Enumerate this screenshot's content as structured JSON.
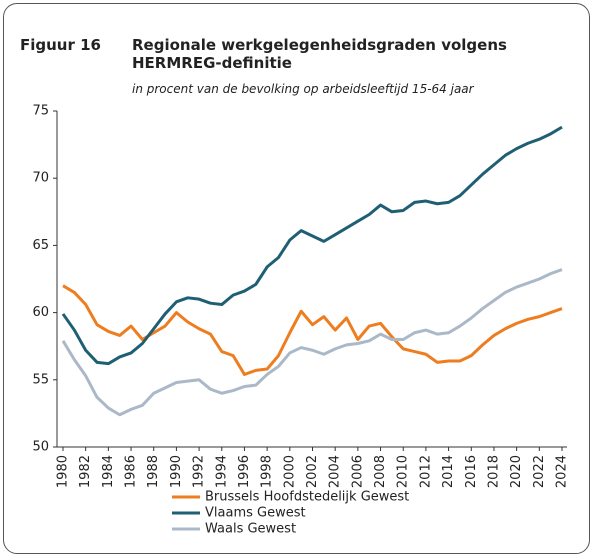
{
  "chart_data": {
    "type": "line",
    "figure_label": "Figuur 16",
    "title": "Regionale werkgelegenheidsgraden volgens HERMREG-definitie",
    "subtitle": "in procent van de bevolking op arbeidsleeftijd 15-64 jaar",
    "x": [
      1980,
      1981,
      1982,
      1983,
      1984,
      1985,
      1986,
      1987,
      1988,
      1989,
      1990,
      1991,
      1992,
      1993,
      1994,
      1995,
      1996,
      1997,
      1998,
      1999,
      2000,
      2001,
      2002,
      2003,
      2004,
      2005,
      2006,
      2007,
      2008,
      2009,
      2010,
      2011,
      2012,
      2013,
      2014,
      2015,
      2016,
      2017,
      2018,
      2019,
      2020,
      2021,
      2022,
      2023,
      2024
    ],
    "xlim": [
      1980,
      2024
    ],
    "xticks": [
      1980,
      1982,
      1984,
      1986,
      1988,
      1990,
      1992,
      1994,
      1996,
      1998,
      2000,
      2002,
      2004,
      2006,
      2008,
      2010,
      2012,
      2014,
      2016,
      2018,
      2020,
      2022,
      2024
    ],
    "ylim": [
      50,
      75
    ],
    "yticks": [
      50,
      55,
      60,
      65,
      70,
      75
    ],
    "grid": false,
    "series": [
      {
        "name": "Brussels Hoofdstedelijk Gewest",
        "color": "#ee7d1f",
        "values": [
          62.0,
          61.5,
          60.6,
          59.1,
          58.6,
          58.3,
          59.0,
          58.0,
          58.5,
          59.0,
          60.0,
          59.3,
          58.8,
          58.4,
          57.1,
          56.8,
          55.4,
          55.7,
          55.8,
          56.8,
          58.5,
          60.1,
          59.1,
          59.7,
          58.7,
          59.6,
          58.0,
          59.0,
          59.2,
          58.2,
          57.3,
          57.1,
          56.9,
          56.3,
          56.4,
          56.4,
          56.8,
          57.6,
          58.3,
          58.8,
          59.2,
          59.5,
          59.7,
          60.0,
          60.3
        ]
      },
      {
        "name": "Vlaams Gewest",
        "color": "#1f5f74",
        "values": [
          59.9,
          58.7,
          57.2,
          56.3,
          56.2,
          56.7,
          57.0,
          57.7,
          58.8,
          59.9,
          60.8,
          61.1,
          61.0,
          60.7,
          60.6,
          61.3,
          61.6,
          62.1,
          63.4,
          64.1,
          65.4,
          66.1,
          65.7,
          65.3,
          65.8,
          66.3,
          66.8,
          67.3,
          68.0,
          67.5,
          67.6,
          68.2,
          68.3,
          68.1,
          68.2,
          68.7,
          69.5,
          70.3,
          71.0,
          71.7,
          72.2,
          72.6,
          72.9,
          73.3,
          73.8
        ]
      },
      {
        "name": "Waals Gewest",
        "color": "#aab8c8",
        "values": [
          57.9,
          56.5,
          55.3,
          53.7,
          52.9,
          52.4,
          52.8,
          53.1,
          54.0,
          54.4,
          54.8,
          54.9,
          55.0,
          54.3,
          54.0,
          54.2,
          54.5,
          54.6,
          55.4,
          56.0,
          57.0,
          57.4,
          57.2,
          56.9,
          57.3,
          57.6,
          57.7,
          57.9,
          58.4,
          58.0,
          58.0,
          58.5,
          58.7,
          58.4,
          58.5,
          59.0,
          59.6,
          60.3,
          60.9,
          61.5,
          61.9,
          62.2,
          62.5,
          62.9,
          63.2
        ]
      }
    ]
  }
}
